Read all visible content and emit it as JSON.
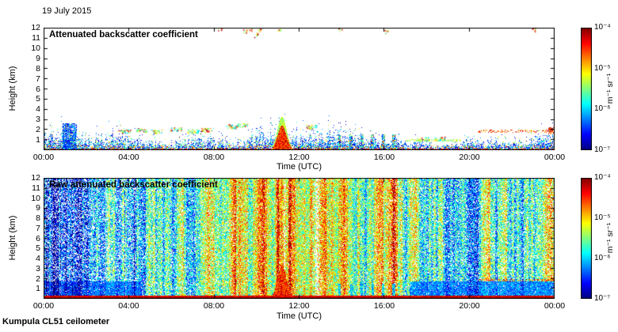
{
  "header": {
    "date_label": "19 July 2015"
  },
  "footer": {
    "instrument_label": "Kumpula CL51 ceilometer"
  },
  "chart_data": [
    {
      "type": "heatmap",
      "title": "Attenuated backscatter coefficient",
      "xlabel": "Time (UTC)",
      "ylabel": "Height (km)",
      "x_ticks": [
        "00:00",
        "04:00",
        "08:00",
        "12:00",
        "16:00",
        "20:00",
        "00:00"
      ],
      "x_range_hours": [
        0,
        24
      ],
      "y_ticks": [
        "12",
        "11",
        "10",
        "9",
        "8",
        "7",
        "6",
        "5",
        "4",
        "3",
        "2",
        "1"
      ],
      "y_range_km": [
        0,
        12
      ],
      "colormap": "jet",
      "value_range": [
        1e-07,
        0.0001
      ],
      "colorbar": {
        "ticks": [
          "10⁻⁴",
          "10⁻⁵",
          "10⁻⁶",
          "10⁻⁷"
        ],
        "unit": "m⁻¹ sr⁻¹"
      },
      "features": {
        "boundary_layer_top_km": {
          "mean": 1.0,
          "variation": 0.5
        },
        "dense_column": {
          "t0": 0.9,
          "t1": 1.55,
          "top_km": 2.6
        },
        "plume": {
          "t_center": 11.2,
          "t_sigma": 0.3,
          "top_km": 3.3
        },
        "precip_streaks_t": [
          13.9,
          14.45,
          14.95,
          15.45,
          15.95,
          16.45
        ],
        "cloud_patches": [
          [
            3.8,
            1.9
          ],
          [
            4.6,
            2.0
          ],
          [
            5.3,
            1.85
          ],
          [
            6.2,
            2.05
          ],
          [
            7.0,
            1.9
          ],
          [
            7.6,
            2.0
          ],
          [
            8.8,
            2.35
          ],
          [
            9.3,
            2.5
          ],
          [
            12.55,
            2.3
          ],
          [
            17.8,
            1.1
          ],
          [
            18.6,
            1.15
          ]
        ],
        "high_specks": [
          [
            8.3,
            11.9
          ],
          [
            9.45,
            11.6
          ],
          [
            9.7,
            11.9
          ],
          [
            9.95,
            11.3
          ],
          [
            10.15,
            11.8
          ],
          [
            11.1,
            11.9
          ],
          [
            13.9,
            11.85
          ],
          [
            16.1,
            11.6
          ],
          [
            23.0,
            11.8
          ]
        ],
        "evening_layer": {
          "t0": 20.4,
          "t1": 23.95,
          "h_km": 1.85
        },
        "evening_cap": {
          "t0": 17.0,
          "t1": 19.6,
          "h_km": 0.95
        },
        "ground_return": {
          "h_km": 0.18
        }
      }
    },
    {
      "type": "heatmap",
      "title": "Raw attenuated backscatter coefficient",
      "xlabel": "Time (UTC)",
      "ylabel": "Height (km)",
      "x_ticks": [
        "00:00",
        "04:00",
        "08:00",
        "12:00",
        "16:00",
        "20:00",
        "00:00"
      ],
      "x_range_hours": [
        0,
        24
      ],
      "y_ticks": [
        "12",
        "11",
        "10",
        "9",
        "8",
        "7",
        "6",
        "5",
        "4",
        "3",
        "2",
        "1"
      ],
      "y_range_km": [
        0,
        12
      ],
      "colormap": "jet",
      "value_range": [
        1e-07,
        0.0001
      ],
      "colorbar": {
        "ticks": [
          "10⁻⁴",
          "10⁻⁵",
          "10⁻⁶",
          "10⁻⁷"
        ],
        "unit": "m⁻¹ sr⁻¹"
      },
      "features": {
        "daytime_brightening": {
          "t_center": 12.3,
          "t_sigma": 4.2,
          "amplitude": 0.16
        },
        "night_stripes": {
          "t0": 0.0,
          "t1": 4.4
        },
        "bright_streaks": [
          {
            "t": 11.05,
            "w": 0.16,
            "amp": 0.3
          },
          {
            "t": 11.6,
            "w": 0.12,
            "amp": 0.26
          },
          {
            "t": 12.25,
            "w": 0.09,
            "amp": 0.18
          },
          {
            "t": 16.45,
            "w": 0.1,
            "amp": 0.2
          },
          {
            "t": 9.0,
            "w": 0.06,
            "amp": 0.12
          }
        ],
        "white_gaps": [
          {
            "t": 12.85,
            "w": 0.12
          },
          {
            "t": 11.32,
            "w": 0.04
          }
        ],
        "plume": {
          "t_center": 11.2,
          "t_sigma": 0.3,
          "top_km": 3.3
        },
        "low_level_streaks": [
          13.9,
          14.45,
          14.95,
          15.45,
          15.95,
          16.45
        ],
        "surface_band": {
          "top_km": 0.35
        },
        "evening_layer": {
          "t0": 20.4,
          "t1": 23.95,
          "h_km": 1.85
        }
      }
    }
  ]
}
